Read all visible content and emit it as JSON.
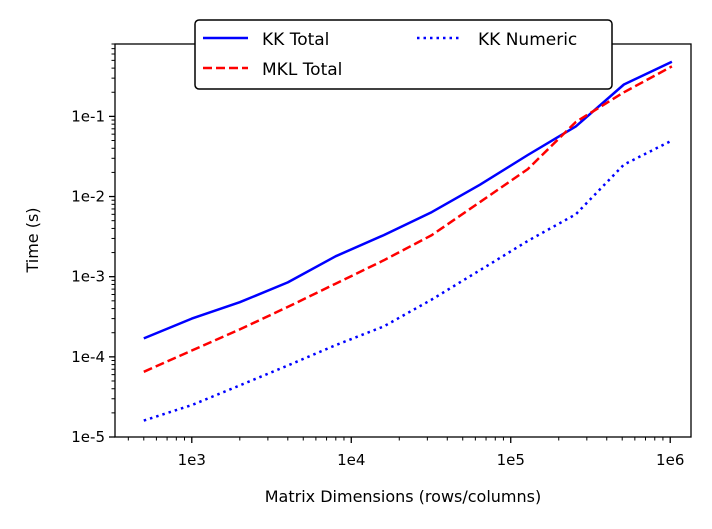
{
  "chart_data": {
    "type": "line",
    "title": "",
    "xlabel": "Matrix Dimensions (rows/columns)",
    "ylabel": "Time (s)",
    "xscale": "log",
    "yscale": "log",
    "xlim": [
      330,
      1350000
    ],
    "ylim": [
      1e-05,
      0.8
    ],
    "grid": false,
    "legend_location": "top-center",
    "x_ticks": [
      {
        "value": 1000,
        "label": "1e3"
      },
      {
        "value": 10000,
        "label": "1e4"
      },
      {
        "value": 100000,
        "label": "1e5"
      },
      {
        "value": 1000000,
        "label": "1e6"
      }
    ],
    "y_ticks": [
      {
        "value": 1e-05,
        "label": "1e-5"
      },
      {
        "value": 0.0001,
        "label": "1e-4"
      },
      {
        "value": 0.001,
        "label": "1e-3"
      },
      {
        "value": 0.01,
        "label": "1e-2"
      },
      {
        "value": 0.1,
        "label": "1e-1"
      }
    ],
    "x": [
      500,
      1000,
      2000,
      4000,
      8000,
      16000,
      32000,
      64000,
      128000,
      256000,
      512000,
      1024000
    ],
    "series": [
      {
        "name": "KK Total",
        "color": "#0000ff",
        "linestyle": "solid",
        "values": [
          0.00017,
          0.0003,
          0.00048,
          0.00085,
          0.0018,
          0.0033,
          0.0064,
          0.014,
          0.033,
          0.075,
          0.25,
          0.48
        ]
      },
      {
        "name": "MKL Total",
        "color": "#ff0000",
        "linestyle": "dashed",
        "values": [
          6.5e-05,
          0.00012,
          0.00022,
          0.00042,
          0.00082,
          0.0016,
          0.0033,
          0.0085,
          0.022,
          0.085,
          0.2,
          0.42
        ]
      },
      {
        "name": "KK Numeric",
        "color": "#0000ff",
        "linestyle": "dotted",
        "values": [
          1.6e-05,
          2.5e-05,
          4.4e-05,
          7.8e-05,
          0.00014,
          0.00024,
          0.00052,
          0.0012,
          0.0028,
          0.006,
          0.025,
          0.05
        ]
      }
    ],
    "legend": {
      "entries": [
        "KK Total",
        "KK Numeric",
        "MKL Total"
      ]
    }
  }
}
